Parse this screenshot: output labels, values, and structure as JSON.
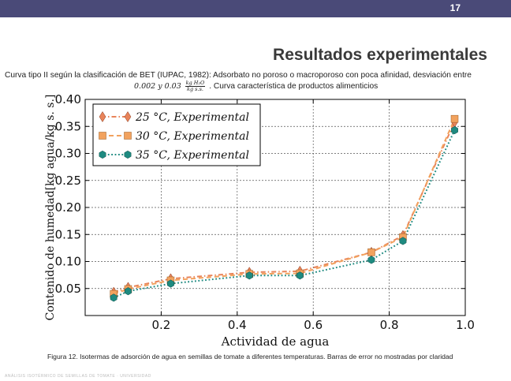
{
  "slide": {
    "number": "17",
    "title": "Resultados experimentales",
    "description_line1": "Curva tipo II según la clasificación de BET (IUPAC, 1982): Adsorbato no poroso o macroporoso con poca afinidad, desviación entre",
    "description_line2_a": "0.002 y 0.03",
    "description_fraction_num": "kg H₂O",
    "description_fraction_den": "kg s.s.",
    "description_line2_b": ". Curva característica de productos alimenticios",
    "caption": "Figura 12. Isotermas de adsorción de agua en semillas de tomate a diferentes temperaturas. Barras de error no mostradas por claridad",
    "footer_text": "ANÁLISIS ISOTÉRMICO DE SEMILLAS DE TOMATE · UNIVERSIDAD"
  },
  "chart_data": {
    "type": "line",
    "xlabel": "Actividad de agua",
    "ylabel": "Contenido de humedad[kg agua/kg s. s.]",
    "xlim": [
      0.0,
      1.0
    ],
    "ylim": [
      0.0,
      0.4
    ],
    "xticks": [
      "0.2",
      "0.4",
      "0.6",
      "0.8",
      "1.0"
    ],
    "xtick_values": [
      0.2,
      0.4,
      0.6,
      0.8,
      1.0
    ],
    "yticks": [
      "0.05",
      "0.10",
      "0.15",
      "0.20",
      "0.25",
      "0.30",
      "0.35",
      "0.40"
    ],
    "ytick_values": [
      0.05,
      0.1,
      0.15,
      0.2,
      0.25,
      0.3,
      0.35,
      0.4
    ],
    "grid": true,
    "legend_position": "top-left",
    "series": [
      {
        "name": "25 °C, Experimental",
        "color": "#e8845a",
        "marker": "diamond",
        "dash": "dashdot",
        "x": [
          0.075,
          0.113,
          0.225,
          0.432,
          0.565,
          0.753,
          0.836,
          0.972
        ],
        "y": [
          0.043,
          0.052,
          0.068,
          0.08,
          0.082,
          0.117,
          0.148,
          0.358
        ]
      },
      {
        "name": "30 °C, Experimental",
        "color": "#f2a25e",
        "marker": "square",
        "dash": "dashed",
        "x": [
          0.075,
          0.113,
          0.225,
          0.432,
          0.565,
          0.753,
          0.836,
          0.972
        ],
        "y": [
          0.04,
          0.049,
          0.065,
          0.077,
          0.078,
          0.117,
          0.145,
          0.364
        ]
      },
      {
        "name": "35 °C, Experimental",
        "color": "#1e8a80",
        "marker": "hexagon",
        "dash": "dotted",
        "x": [
          0.075,
          0.113,
          0.225,
          0.432,
          0.565,
          0.753,
          0.836,
          0.972
        ],
        "y": [
          0.033,
          0.045,
          0.059,
          0.074,
          0.074,
          0.103,
          0.138,
          0.343
        ]
      }
    ]
  }
}
